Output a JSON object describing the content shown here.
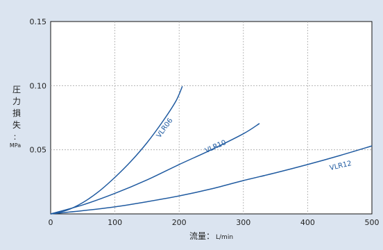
{
  "chart_data": {
    "type": "line",
    "title": "",
    "ylabel": "圧力損失：",
    "ylabel_unit": "MPa",
    "xlabel": "流量：",
    "xlabel_unit": "L/min",
    "xlim": [
      0,
      500
    ],
    "ylim": [
      0,
      0.15
    ],
    "x_ticks": [
      "0",
      "100",
      "200",
      "300",
      "400",
      "500"
    ],
    "y_ticks": [
      "0.05",
      "0.10",
      "0.15"
    ],
    "grid": true,
    "line_color": "#1f5aa0",
    "series": [
      {
        "name": "VLR06",
        "points": [
          [
            0,
            0
          ],
          [
            25,
            0.0028
          ],
          [
            50,
            0.0088
          ],
          [
            75,
            0.0175
          ],
          [
            100,
            0.0285
          ],
          [
            125,
            0.041
          ],
          [
            150,
            0.0555
          ],
          [
            175,
            0.0725
          ],
          [
            195,
            0.088
          ],
          [
            205,
            0.0995
          ]
        ]
      },
      {
        "name": "VLR10",
        "points": [
          [
            0,
            0
          ],
          [
            50,
            0.007
          ],
          [
            100,
            0.016
          ],
          [
            150,
            0.0265
          ],
          [
            200,
            0.0385
          ],
          [
            250,
            0.05
          ],
          [
            300,
            0.0625
          ],
          [
            325,
            0.0705
          ]
        ]
      },
      {
        "name": "VLR12",
        "points": [
          [
            0,
            0
          ],
          [
            50,
            0.0025
          ],
          [
            100,
            0.0055
          ],
          [
            150,
            0.0095
          ],
          [
            200,
            0.014
          ],
          [
            250,
            0.0195
          ],
          [
            300,
            0.026
          ],
          [
            350,
            0.032
          ],
          [
            400,
            0.0385
          ],
          [
            450,
            0.0455
          ],
          [
            500,
            0.053
          ]
        ]
      }
    ]
  }
}
